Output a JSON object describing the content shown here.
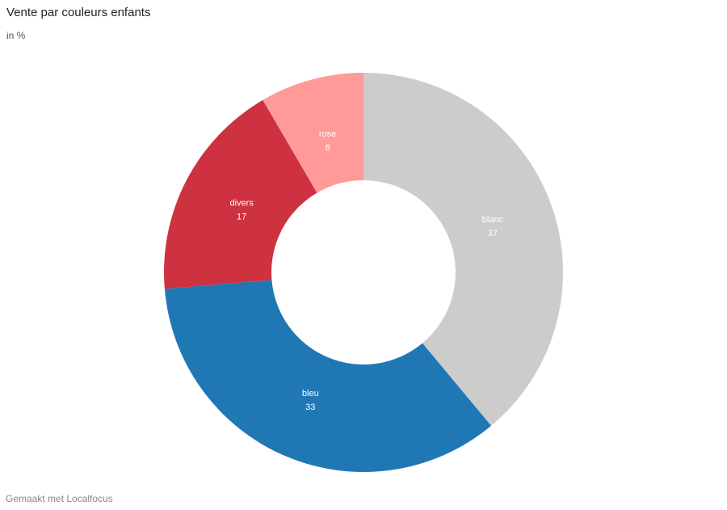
{
  "title": "Vente par couleurs enfants",
  "subtitle": "in %",
  "footer": "Gemaakt met Localfocus",
  "chart_data": {
    "type": "pie",
    "donut": true,
    "slices": [
      {
        "label": "blanc",
        "value": 37,
        "color": "#cccccc"
      },
      {
        "label": "bleu",
        "value": 33,
        "color": "#1f78b4"
      },
      {
        "label": "divers",
        "value": 17,
        "color": "#ce313f"
      },
      {
        "label": "rose",
        "value": 8,
        "color": "#ff9a99"
      }
    ],
    "label_color": "#ffffff"
  }
}
